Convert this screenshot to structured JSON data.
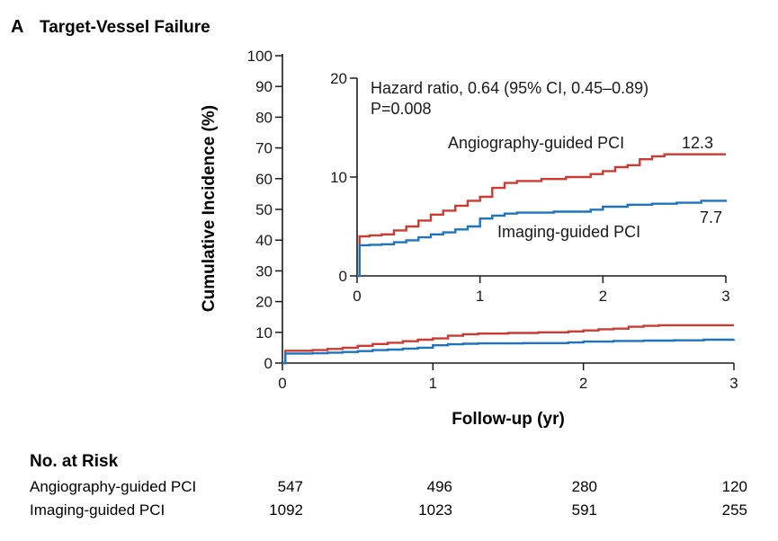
{
  "panel": {
    "letter": "A",
    "title": "Target-Vessel Failure"
  },
  "colors": {
    "angiography": "#cc3b33",
    "imaging": "#1f74bf",
    "axis": "#1a1a1a"
  },
  "chart_data": [
    {
      "type": "line",
      "xlabel": "Follow-up (yr)",
      "ylabel": "Cumulative Incidence (%)",
      "xlim": [
        0,
        3
      ],
      "ylim": [
        0,
        100
      ],
      "xticks": [
        "0",
        "1",
        "2",
        "3"
      ],
      "yticks": [
        "0",
        "10",
        "20",
        "30",
        "40",
        "50",
        "60",
        "70",
        "80",
        "90",
        "100"
      ],
      "series": [
        {
          "name": "Angiography-guided PCI",
          "color": "#cc3b33",
          "x": [
            0,
            0.02,
            0.2,
            0.3,
            0.4,
            0.5,
            0.6,
            0.7,
            0.8,
            0.9,
            1.0,
            1.1,
            1.2,
            1.3,
            1.5,
            1.7,
            1.9,
            2.0,
            2.1,
            2.2,
            2.3,
            2.4,
            2.5,
            2.8,
            3.0
          ],
          "y": [
            0,
            4.0,
            4.2,
            4.6,
            5.0,
            5.6,
            6.2,
            6.6,
            7.1,
            7.6,
            8.0,
            8.9,
            9.4,
            9.6,
            9.8,
            10.0,
            10.3,
            10.6,
            11.0,
            11.2,
            11.8,
            12.1,
            12.3,
            12.3,
            12.3
          ]
        },
        {
          "name": "Imaging-guided PCI",
          "color": "#1f74bf",
          "x": [
            0,
            0.02,
            0.2,
            0.3,
            0.4,
            0.5,
            0.6,
            0.7,
            0.8,
            0.9,
            1.0,
            1.1,
            1.2,
            1.3,
            1.6,
            1.9,
            2.0,
            2.2,
            2.4,
            2.6,
            2.8,
            3.0
          ],
          "y": [
            0,
            3.1,
            3.2,
            3.4,
            3.6,
            3.9,
            4.2,
            4.4,
            4.7,
            5.0,
            5.8,
            6.1,
            6.3,
            6.4,
            6.5,
            6.7,
            7.0,
            7.2,
            7.3,
            7.4,
            7.6,
            7.7
          ]
        }
      ]
    },
    {
      "type": "line",
      "xlim": [
        0,
        3
      ],
      "ylim": [
        0,
        20
      ],
      "xticks": [
        "0",
        "1",
        "2",
        "3"
      ],
      "yticks": [
        "0",
        "10",
        "20"
      ],
      "annotations": {
        "hazard_ratio": "Hazard ratio, 0.64 (95% CI, 0.45–0.89)",
        "p_value": "P=0.008",
        "angio_label": "Angiography-guided PCI",
        "angio_end": "12.3",
        "imaging_label": "Imaging-guided PCI",
        "imaging_end": "7.7"
      },
      "series": [
        {
          "name": "Angiography-guided PCI",
          "color": "#cc3b33",
          "x": [
            0,
            0.02,
            0.1,
            0.2,
            0.3,
            0.4,
            0.5,
            0.6,
            0.7,
            0.8,
            0.9,
            1.0,
            1.1,
            1.2,
            1.3,
            1.5,
            1.7,
            1.9,
            2.0,
            2.1,
            2.2,
            2.3,
            2.4,
            2.5,
            2.8,
            3.0
          ],
          "y": [
            0,
            4.0,
            4.1,
            4.2,
            4.6,
            5.0,
            5.6,
            6.2,
            6.6,
            7.1,
            7.6,
            8.0,
            8.9,
            9.4,
            9.6,
            9.8,
            10.0,
            10.3,
            10.6,
            11.0,
            11.2,
            11.8,
            12.1,
            12.3,
            12.3,
            12.3
          ]
        },
        {
          "name": "Imaging-guided PCI",
          "color": "#1f74bf",
          "x": [
            0,
            0.02,
            0.1,
            0.2,
            0.3,
            0.4,
            0.5,
            0.6,
            0.7,
            0.8,
            0.9,
            1.0,
            1.1,
            1.2,
            1.3,
            1.6,
            1.9,
            2.0,
            2.2,
            2.4,
            2.6,
            2.8,
            3.0
          ],
          "y": [
            0,
            3.1,
            3.15,
            3.2,
            3.4,
            3.6,
            3.9,
            4.2,
            4.4,
            4.7,
            5.0,
            5.8,
            6.1,
            6.3,
            6.4,
            6.5,
            6.7,
            7.0,
            7.2,
            7.3,
            7.4,
            7.6,
            7.7
          ]
        }
      ]
    }
  ],
  "risk_table": {
    "title": "No. at Risk",
    "rows": [
      {
        "label": "Angiography-guided PCI",
        "values": [
          "547",
          "496",
          "280",
          "120"
        ]
      },
      {
        "label": "Imaging-guided PCI",
        "values": [
          "1092",
          "1023",
          "591",
          "255"
        ]
      }
    ]
  }
}
